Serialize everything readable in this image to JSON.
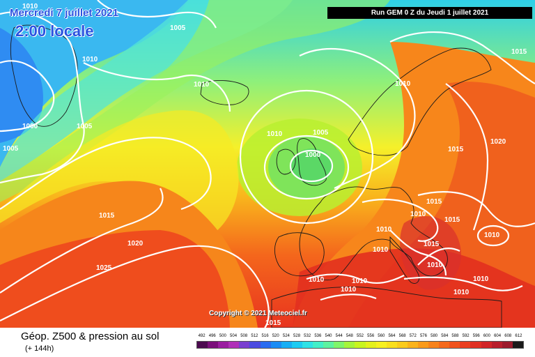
{
  "header": {
    "date": "Mercredi 7 juillet 2021",
    "local_time": "2:00 locale",
    "run": "Run GEM 0 Z du Jeudi 1 juillet 2021"
  },
  "copyright": "Copyright © 2021 Meteociel.fr",
  "footer": {
    "product": "Géop. Z500 & pression au sol",
    "lead_time": "(+ 144h)"
  },
  "isobar_labels": [
    "1010",
    "1005",
    "1010",
    "1000",
    "1005",
    "1005",
    "1010",
    "1005",
    "1000",
    "1010",
    "1010",
    "1015",
    "1020",
    "1015",
    "1015",
    "1015",
    "1010",
    "1010",
    "1010",
    "1015",
    "1010",
    "1015",
    "1020",
    "1010",
    "1025",
    "1010",
    "1010",
    "1010",
    "1010",
    "1010",
    "1015"
  ],
  "scale": {
    "labels": [
      "492",
      "496",
      "500",
      "504",
      "508",
      "512",
      "516",
      "520",
      "524",
      "528",
      "532",
      "536",
      "540",
      "544",
      "548",
      "552",
      "556",
      "560",
      "564",
      "568",
      "572",
      "576",
      "580",
      "584",
      "588",
      "592",
      "596",
      "600",
      "604",
      "608",
      "612"
    ],
    "colors": [
      "#4b0a4f",
      "#7a0f7a",
      "#9a1da0",
      "#b030b8",
      "#7a3fd0",
      "#4b4be0",
      "#2a6cf0",
      "#1a8cf5",
      "#16aef5",
      "#1ccbf2",
      "#2ee2e6",
      "#42efc8",
      "#5df2a0",
      "#7ff56a",
      "#a6f53a",
      "#c8f51f",
      "#e4f11c",
      "#f7f020",
      "#f9df1d",
      "#facb1c",
      "#fab31b",
      "#f99a1a",
      "#f7821b",
      "#f4691c",
      "#f0521d",
      "#ea3e20",
      "#e02f23",
      "#d12528",
      "#b81e2c",
      "#9b1a2c",
      "#1a1a1a"
    ]
  }
}
